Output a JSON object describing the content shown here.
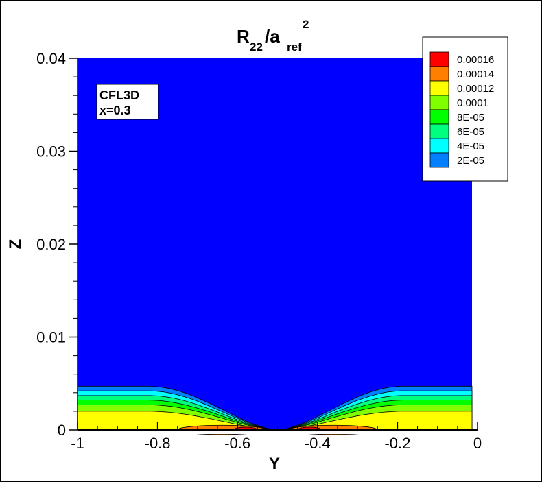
{
  "chart_data": {
    "type": "contour",
    "title": {
      "base": "R",
      "base_sub": "22",
      "slash": "/a",
      "denom_sub": "ref",
      "sup": "2"
    },
    "xlabel": "Y",
    "ylabel": "Z",
    "xlim": [
      -1,
      0
    ],
    "ylim": [
      0,
      0.04
    ],
    "xticks": [
      {
        "value": -1,
        "label": "-1"
      },
      {
        "value": -0.8,
        "label": "-0.8"
      },
      {
        "value": -0.6,
        "label": "-0.6"
      },
      {
        "value": -0.4,
        "label": "-0.4"
      },
      {
        "value": -0.2,
        "label": "-0.2"
      },
      {
        "value": 0,
        "label": "0"
      }
    ],
    "yticks": [
      {
        "value": 0,
        "label": "0"
      },
      {
        "value": 0.01,
        "label": "0.01"
      },
      {
        "value": 0.02,
        "label": "0.02"
      },
      {
        "value": 0.03,
        "label": "0.03"
      },
      {
        "value": 0.04,
        "label": "0.04"
      }
    ],
    "annotation": [
      "CFL3D",
      "x=0.3"
    ],
    "legend_position": "top-right",
    "levels": [
      {
        "label": "0.00016",
        "value": 0.00016,
        "color": "#ff0000"
      },
      {
        "label": "0.00014",
        "value": 0.00014,
        "color": "#ff7f00"
      },
      {
        "label": "0.00012",
        "value": 0.00012,
        "color": "#ffff00"
      },
      {
        "label": "0.0001",
        "value": 0.0001,
        "color": "#7fff00"
      },
      {
        "label": "8E-05",
        "value": 8e-05,
        "color": "#00ff00"
      },
      {
        "label": "6E-05",
        "value": 6e-05,
        "color": "#00ff7f"
      },
      {
        "label": "4E-05",
        "value": 4e-05,
        "color": "#00ffff"
      },
      {
        "label": "2E-05",
        "value": 2e-05,
        "color": "#007fff"
      }
    ],
    "background_color": "#0000ff",
    "band_tops": [
      {
        "level": "2E-05",
        "z_edge": 0.0047
      },
      {
        "level": "4E-05",
        "z_edge": 0.0042
      },
      {
        "level": "6E-05",
        "z_edge": 0.0037
      },
      {
        "level": "8E-05",
        "z_edge": 0.0032
      },
      {
        "level": "0.0001",
        "z_edge": 0.0027
      },
      {
        "level": "0.00012",
        "z_edge": 0.002
      }
    ],
    "cusp_y": -0.5,
    "peak_regions": [
      {
        "level": "0.00014",
        "y_center": -0.64,
        "y_halfwidth": 0.11,
        "z_height": 0.0005
      },
      {
        "level": "0.00014",
        "y_center": -0.36,
        "y_halfwidth": 0.11,
        "z_height": 0.0005
      },
      {
        "level": "0.00016",
        "y_center": -0.58,
        "y_halfwidth": 0.03,
        "z_height": 0.0003
      },
      {
        "level": "0.00016",
        "y_center": -0.42,
        "y_halfwidth": 0.03,
        "z_height": 0.0003
      }
    ]
  }
}
